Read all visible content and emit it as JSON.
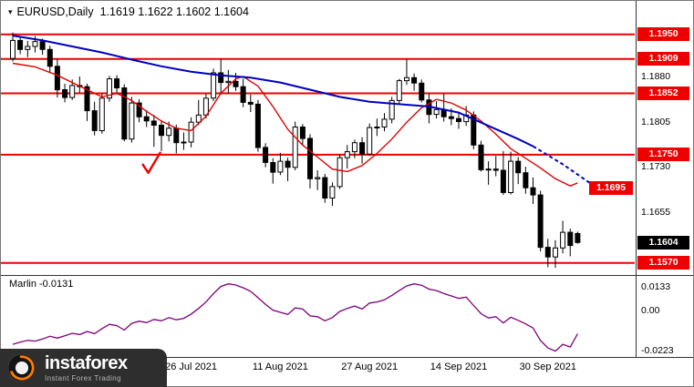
{
  "title": {
    "symbol_period": "EURUSD,Daily",
    "ohlc": "1.1619 1.1622 1.1602 1.1604"
  },
  "icons": {
    "chart_marker": "▾"
  },
  "colors": {
    "level_red": "#ee0000",
    "ma_slow_blue": "#0000c0",
    "ma_fast_red": "#dd0000",
    "oscillator_purple": "#7b007b",
    "price_box_red_bg": "#ee0000",
    "current_price_box_bg": "#000000",
    "box_text": "#ffffff",
    "candle_up_fill": "#ffffff",
    "candle_down_fill": "#000000",
    "logo_bg": "#2e2e2e",
    "logo_accent_orange": "#ff7a00"
  },
  "logo": {
    "brand": "instaforex",
    "tagline": "Instant Forex Trading"
  },
  "chart_data": {
    "type": "candlestick",
    "symbol": "EURUSD",
    "timeframe": "Daily",
    "last_ohlc": {
      "open": 1.1619,
      "high": 1.1622,
      "low": 1.1602,
      "close": 1.1604
    },
    "horizontal_levels": [
      1.195,
      1.1909,
      1.1852,
      1.175,
      1.157
    ],
    "candles": [
      [
        1.191,
        1.1953,
        1.1905,
        1.194
      ],
      [
        1.194,
        1.1946,
        1.1917,
        1.1925
      ],
      [
        1.1925,
        1.1939,
        1.1912,
        1.193
      ],
      [
        1.193,
        1.1947,
        1.192,
        1.1938
      ],
      [
        1.1938,
        1.1943,
        1.1916,
        1.1925
      ],
      [
        1.1925,
        1.1931,
        1.1886,
        1.1897
      ],
      [
        1.1897,
        1.1909,
        1.1845,
        1.1858
      ],
      [
        1.1858,
        1.1868,
        1.1837,
        1.1845
      ],
      [
        1.1845,
        1.1875,
        1.1841,
        1.1865
      ],
      [
        1.1865,
        1.188,
        1.1853,
        1.1863
      ],
      [
        1.1863,
        1.1868,
        1.1806,
        1.1823
      ],
      [
        1.1823,
        1.1838,
        1.1782,
        1.179
      ],
      [
        1.179,
        1.1851,
        1.1785,
        1.1844
      ],
      [
        1.1844,
        1.1881,
        1.1838,
        1.1876
      ],
      [
        1.1876,
        1.1882,
        1.185,
        1.1861
      ],
      [
        1.1861,
        1.1867,
        1.1772,
        1.1776
      ],
      [
        1.1776,
        1.1846,
        1.177,
        1.1836
      ],
      [
        1.1836,
        1.1842,
        1.1804,
        1.1813
      ],
      [
        1.1813,
        1.1824,
        1.1796,
        1.1806
      ],
      [
        1.1806,
        1.1816,
        1.1763,
        1.1799
      ],
      [
        1.1799,
        1.1805,
        1.1756,
        1.1782
      ],
      [
        1.1782,
        1.1805,
        1.1772,
        1.1794
      ],
      [
        1.1794,
        1.18,
        1.1752,
        1.177
      ],
      [
        1.177,
        1.1787,
        1.1758,
        1.1771
      ],
      [
        1.1771,
        1.1812,
        1.1762,
        1.1804
      ],
      [
        1.1804,
        1.1841,
        1.1799,
        1.1816
      ],
      [
        1.1816,
        1.1851,
        1.181,
        1.1844
      ],
      [
        1.1844,
        1.1893,
        1.1839,
        1.1886
      ],
      [
        1.1886,
        1.1909,
        1.1851,
        1.187
      ],
      [
        1.187,
        1.1891,
        1.1852,
        1.1872
      ],
      [
        1.1872,
        1.1886,
        1.1856,
        1.1863
      ],
      [
        1.1863,
        1.1876,
        1.1829,
        1.1837
      ],
      [
        1.1837,
        1.185,
        1.1821,
        1.1834
      ],
      [
        1.1834,
        1.1841,
        1.1755,
        1.1762
      ],
      [
        1.1762,
        1.1769,
        1.1729,
        1.1737
      ],
      [
        1.1737,
        1.1744,
        1.1702,
        1.1721
      ],
      [
        1.1721,
        1.1753,
        1.1716,
        1.1739
      ],
      [
        1.1739,
        1.1745,
        1.1706,
        1.1729
      ],
      [
        1.1729,
        1.1805,
        1.1724,
        1.1796
      ],
      [
        1.1796,
        1.1801,
        1.1765,
        1.1777
      ],
      [
        1.1777,
        1.1784,
        1.1694,
        1.171
      ],
      [
        1.171,
        1.1724,
        1.1691,
        1.1712
      ],
      [
        1.1712,
        1.1718,
        1.167,
        1.1678
      ],
      [
        1.1678,
        1.1704,
        1.1665,
        1.1697
      ],
      [
        1.1697,
        1.175,
        1.1693,
        1.1745
      ],
      [
        1.1745,
        1.1766,
        1.1727,
        1.1755
      ],
      [
        1.1755,
        1.1775,
        1.1744,
        1.177
      ],
      [
        1.177,
        1.1779,
        1.1735,
        1.1751
      ],
      [
        1.1751,
        1.1802,
        1.1748,
        1.1795
      ],
      [
        1.1795,
        1.181,
        1.1781,
        1.1796
      ],
      [
        1.1796,
        1.1819,
        1.1789,
        1.1809
      ],
      [
        1.1809,
        1.1846,
        1.1802,
        1.184
      ],
      [
        1.184,
        1.1876,
        1.1833,
        1.1873
      ],
      [
        1.1873,
        1.1909,
        1.1866,
        1.1878
      ],
      [
        1.1878,
        1.1885,
        1.1856,
        1.1869
      ],
      [
        1.1869,
        1.1875,
        1.1837,
        1.1841
      ],
      [
        1.1841,
        1.1851,
        1.1802,
        1.1817
      ],
      [
        1.1817,
        1.1839,
        1.181,
        1.1825
      ],
      [
        1.1825,
        1.1851,
        1.1805,
        1.1813
      ],
      [
        1.1813,
        1.1827,
        1.1799,
        1.181
      ],
      [
        1.181,
        1.1819,
        1.1793,
        1.1805
      ],
      [
        1.1805,
        1.1831,
        1.1798,
        1.1816
      ],
      [
        1.1816,
        1.1822,
        1.1759,
        1.1766
      ],
      [
        1.1766,
        1.1773,
        1.1722,
        1.1725
      ],
      [
        1.1725,
        1.1739,
        1.17,
        1.1726
      ],
      [
        1.1726,
        1.1748,
        1.1714,
        1.1724
      ],
      [
        1.1724,
        1.1756,
        1.1683,
        1.1687
      ],
      [
        1.1687,
        1.1755,
        1.1684,
        1.1739
      ],
      [
        1.1739,
        1.1746,
        1.1701,
        1.172
      ],
      [
        1.172,
        1.173,
        1.1685,
        1.1695
      ],
      [
        1.1695,
        1.1712,
        1.1668,
        1.1683
      ],
      [
        1.1683,
        1.169,
        1.1589,
        1.1596
      ],
      [
        1.1596,
        1.161,
        1.1563,
        1.158
      ],
      [
        1.158,
        1.1608,
        1.1562,
        1.1595
      ],
      [
        1.1595,
        1.164,
        1.1586,
        1.1621
      ],
      [
        1.1621,
        1.1627,
        1.1581,
        1.1599
      ],
      [
        1.1619,
        1.1622,
        1.1602,
        1.1604
      ]
    ],
    "x_labels": [
      {
        "text": "26 Jul 2021",
        "index": 24
      },
      {
        "text": "11 Aug 2021",
        "index": 36
      },
      {
        "text": "27 Aug 2021",
        "index": 48
      },
      {
        "text": "14 Sep 2021",
        "index": 60
      },
      {
        "text": "30 Sep 2021",
        "index": 72
      }
    ],
    "price_axis": {
      "boxed_level_labels": [
        {
          "text": "1.1950",
          "price": 1.195
        },
        {
          "text": "1.1909",
          "price": 1.1909
        },
        {
          "text": "1.1852",
          "price": 1.1852
        },
        {
          "text": "1.1750",
          "price": 1.175
        },
        {
          "text": "1.1570",
          "price": 1.157
        }
      ],
      "plain_labels": [
        {
          "text": "1.1880",
          "price": 1.188
        },
        {
          "text": "1.1805",
          "price": 1.1805
        },
        {
          "text": "1.1730",
          "price": 1.173
        },
        {
          "text": "1.1655",
          "price": 1.1655
        }
      ],
      "current_price_label": {
        "text": "1.1604",
        "price": 1.1604
      },
      "forecast_label": {
        "text": "1.1695",
        "price": 1.1695
      }
    },
    "ma_blue_points": [
      [
        0,
        1.1948
      ],
      [
        4,
        1.194
      ],
      [
        8,
        1.193
      ],
      [
        12,
        1.192
      ],
      [
        16,
        1.1908
      ],
      [
        20,
        1.1897
      ],
      [
        24,
        1.1888
      ],
      [
        28,
        1.1882
      ],
      [
        32,
        1.1878
      ],
      [
        36,
        1.187
      ],
      [
        40,
        1.1858
      ],
      [
        44,
        1.1846
      ],
      [
        48,
        1.1838
      ],
      [
        52,
        1.1834
      ],
      [
        56,
        1.183
      ],
      [
        60,
        1.182
      ],
      [
        64,
        1.1798
      ],
      [
        68,
        1.1776
      ],
      [
        70,
        1.1764
      ]
    ],
    "ma_blue_dashed_points": [
      [
        70,
        1.1764
      ],
      [
        74,
        1.1734
      ],
      [
        78,
        1.17
      ]
    ],
    "ma_red_points": [
      [
        0,
        1.1902
      ],
      [
        3,
        1.1896
      ],
      [
        6,
        1.1882
      ],
      [
        9,
        1.1864
      ],
      [
        12,
        1.1846
      ],
      [
        14,
        1.1852
      ],
      [
        16,
        1.184
      ],
      [
        18,
        1.1822
      ],
      [
        20,
        1.1806
      ],
      [
        22,
        1.1794
      ],
      [
        24,
        1.179
      ],
      [
        26,
        1.1814
      ],
      [
        28,
        1.1852
      ],
      [
        30,
        1.1876
      ],
      [
        31,
        1.188
      ],
      [
        33,
        1.1864
      ],
      [
        35,
        1.183
      ],
      [
        37,
        1.1792
      ],
      [
        39,
        1.1766
      ],
      [
        41,
        1.1746
      ],
      [
        43,
        1.1726
      ],
      [
        45,
        1.1722
      ],
      [
        47,
        1.1732
      ],
      [
        49,
        1.1752
      ],
      [
        51,
        1.1776
      ],
      [
        53,
        1.1804
      ],
      [
        55,
        1.1828
      ],
      [
        57,
        1.1842
      ],
      [
        59,
        1.1836
      ],
      [
        61,
        1.1824
      ],
      [
        63,
        1.1806
      ],
      [
        65,
        1.1784
      ],
      [
        67,
        1.176
      ],
      [
        69,
        1.1744
      ],
      [
        71,
        1.1728
      ],
      [
        73,
        1.171
      ],
      [
        75,
        1.1698
      ],
      [
        76,
        1.1703
      ]
    ],
    "annotation_checkmark": {
      "index": 17.5,
      "price": 1.1735
    },
    "indicator": {
      "name_label": "Marlin -0.0131",
      "current_value": -0.0131,
      "axis_labels": [
        {
          "text": "0.0133",
          "value": 0.0133
        },
        {
          "text": "0.00",
          "value": 0
        },
        {
          "text": "-0.0223",
          "value": -0.0223
        }
      ],
      "values": [
        -0.019,
        -0.0178,
        -0.0168,
        -0.0172,
        -0.016,
        -0.0145,
        -0.0155,
        -0.0142,
        -0.0128,
        -0.0135,
        -0.0118,
        -0.013,
        -0.0102,
        -0.0078,
        -0.0085,
        -0.011,
        -0.0072,
        -0.006,
        -0.0068,
        -0.005,
        -0.0058,
        -0.004,
        -0.0052,
        -0.0044,
        -0.002,
        0.0012,
        0.0048,
        0.0095,
        0.0135,
        0.015,
        0.0143,
        0.0128,
        0.0108,
        0.0072,
        0.0035,
        0.0002,
        -0.001,
        -0.0022,
        0.0015,
        0.0008,
        -0.003,
        -0.0035,
        -0.0058,
        -0.004,
        -0.0005,
        0.0012,
        0.0025,
        0.0008,
        0.0042,
        0.0048,
        0.006,
        0.0085,
        0.0112,
        0.0138,
        0.015,
        0.0142,
        0.012,
        0.0112,
        0.0095,
        0.0082,
        0.0068,
        0.0075,
        0.0028,
        -0.0018,
        -0.0042,
        -0.0035,
        -0.007,
        -0.0038,
        -0.0055,
        -0.0075,
        -0.0098,
        -0.0168,
        -0.021,
        -0.0228,
        -0.019,
        -0.0205,
        -0.0131
      ]
    }
  }
}
